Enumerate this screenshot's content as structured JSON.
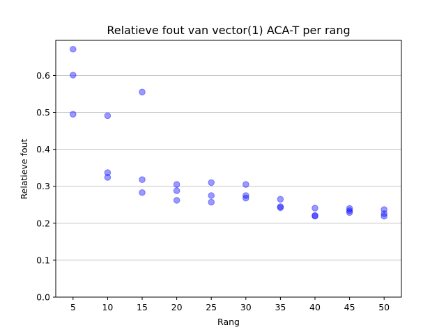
{
  "chart_data": {
    "type": "scatter",
    "title": "Relatieve fout van vector(1) ACA-T per rang",
    "xlabel": "Rang",
    "ylabel": "Relatieve fout",
    "xlim": [
      2.5,
      52.5
    ],
    "ylim": [
      0.0,
      0.695
    ],
    "x_ticks": [
      5,
      10,
      15,
      20,
      25,
      30,
      35,
      40,
      45,
      50
    ],
    "y_ticks": [
      0.0,
      0.1,
      0.2,
      0.3,
      0.4,
      0.5,
      0.6
    ],
    "y_tick_labels": [
      "0.0",
      "0.1",
      "0.2",
      "0.3",
      "0.4",
      "0.5",
      "0.6"
    ],
    "grid": "horizontal",
    "point_color": "#0000ff",
    "point_opacity": 0.4,
    "series": [
      {
        "x": [
          5,
          5,
          5,
          10,
          10,
          10,
          15,
          15,
          15,
          20,
          20,
          20,
          25,
          25,
          25,
          30,
          30,
          30,
          35,
          35,
          35,
          40,
          40,
          40,
          45,
          45,
          45,
          50,
          50,
          50
        ],
        "y": [
          0.671,
          0.601,
          0.495,
          0.491,
          0.337,
          0.324,
          0.555,
          0.318,
          0.283,
          0.305,
          0.288,
          0.262,
          0.31,
          0.275,
          0.257,
          0.305,
          0.275,
          0.268,
          0.265,
          0.245,
          0.242,
          0.241,
          0.221,
          0.219,
          0.24,
          0.234,
          0.229,
          0.237,
          0.226,
          0.219
        ]
      }
    ]
  }
}
